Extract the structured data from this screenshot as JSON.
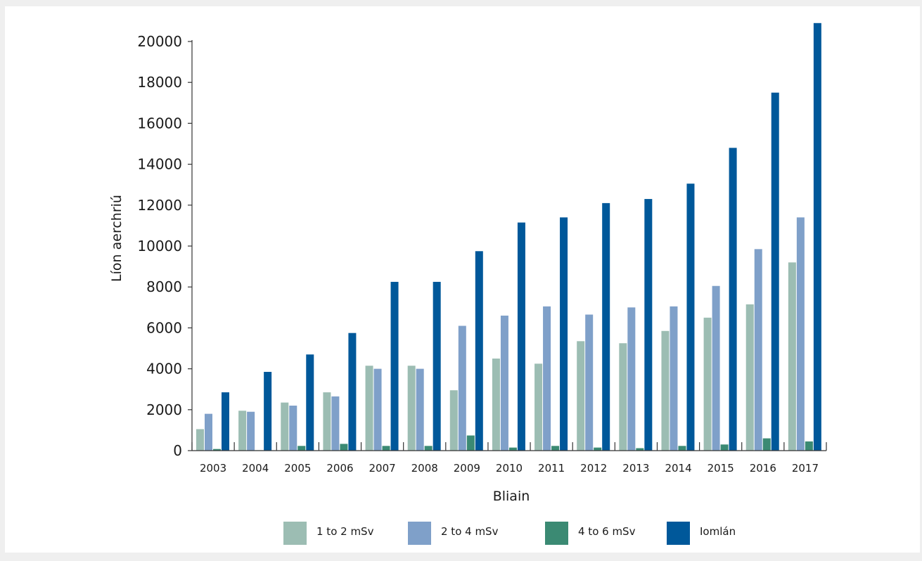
{
  "chart_data": {
    "type": "bar",
    "title": "",
    "xlabel": "Bliain",
    "ylabel": "Líon aerchriú",
    "ylim": [
      0,
      20000
    ],
    "yticks": [
      0,
      2000,
      4000,
      6000,
      8000,
      10000,
      12000,
      14000,
      16000,
      18000,
      20000
    ],
    "grid": false,
    "legend_position": "bottom",
    "categories": [
      "2003",
      "2004",
      "2005",
      "2006",
      "2007",
      "2008",
      "2009",
      "2010",
      "2011",
      "2012",
      "2013",
      "2014",
      "2015",
      "2016",
      "2017"
    ],
    "series": [
      {
        "name": "1 to 2 mSv",
        "color": "#9cbdb3",
        "values": [
          1050,
          1950,
          2350,
          2850,
          4150,
          4150,
          2950,
          4500,
          4250,
          5350,
          5250,
          5850,
          6500,
          7150,
          9200
        ]
      },
      {
        "name": "2 to 4 mSv",
        "color": "#7fa0c9",
        "values": [
          1800,
          1900,
          2200,
          2650,
          4000,
          4000,
          6100,
          6600,
          7050,
          6650,
          7000,
          7050,
          8050,
          9850,
          11400
        ]
      },
      {
        "name": "4 to 6 mSv",
        "color": "#3b8a73",
        "values": [
          80,
          20,
          230,
          330,
          230,
          230,
          740,
          150,
          230,
          150,
          120,
          230,
          300,
          600,
          450
        ]
      },
      {
        "name": "Iomlán",
        "color": "#00589a",
        "values": [
          2850,
          3850,
          4700,
          5750,
          8250,
          8250,
          9750,
          11150,
          11400,
          12100,
          12300,
          13050,
          14800,
          17500,
          20900
        ]
      }
    ]
  }
}
